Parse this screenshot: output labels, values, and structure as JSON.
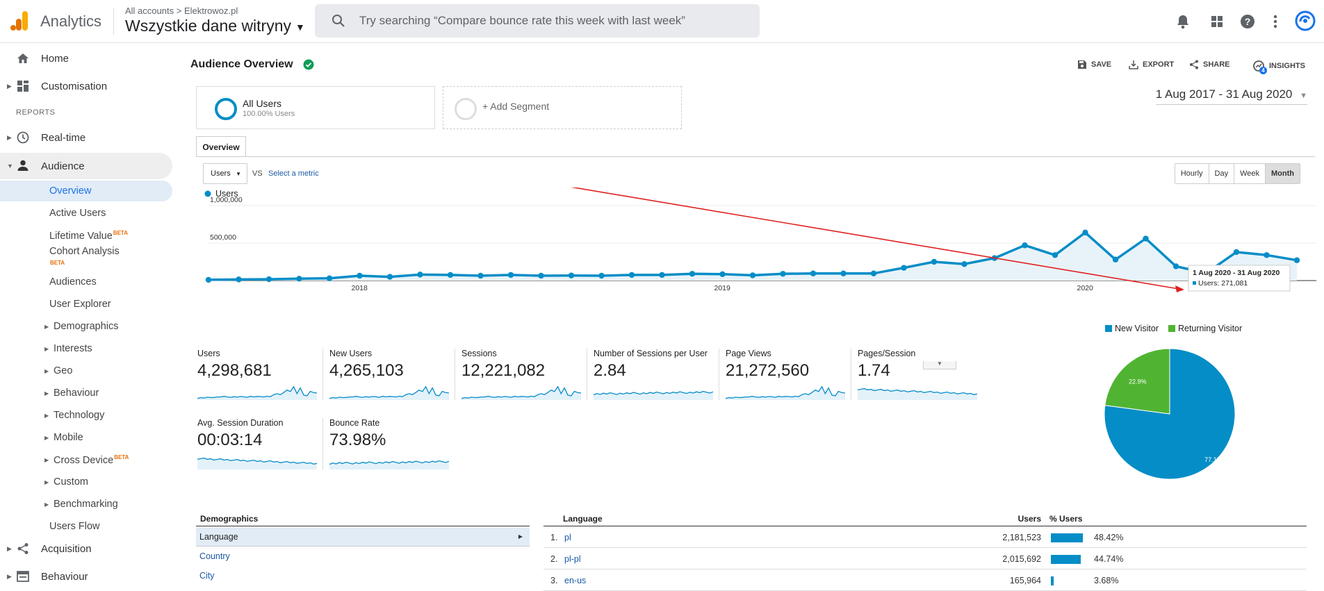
{
  "header": {
    "app_name": "Analytics",
    "breadcrumb": "All accounts",
    "account": "Elektrowoz.pl",
    "property": "Wszystkie dane witryny",
    "search_placeholder": "Try searching “Compare bounce rate this week with last week”",
    "icons": [
      "bell-icon",
      "apps-icon",
      "help-icon",
      "more-icon",
      "account-icon"
    ]
  },
  "sidebar": {
    "home": "Home",
    "customisation": "Customisation",
    "reports_label": "REPORTS",
    "realtime": "Real-time",
    "audience": "Audience",
    "audience_items": [
      {
        "label": "Overview"
      },
      {
        "label": "Active Users"
      },
      {
        "label": "Lifetime Value",
        "badge": "BETA"
      },
      {
        "label": "Cohort Analysis",
        "badge": "BETA"
      },
      {
        "label": "Audiences"
      },
      {
        "label": "User Explorer"
      },
      {
        "label": "Demographics"
      },
      {
        "label": "Interests"
      },
      {
        "label": "Geo"
      },
      {
        "label": "Behaviour"
      },
      {
        "label": "Technology"
      },
      {
        "label": "Mobile"
      },
      {
        "label": "Cross Device",
        "badge": "BETA"
      },
      {
        "label": "Custom"
      },
      {
        "label": "Benchmarking"
      },
      {
        "label": "Users Flow"
      }
    ],
    "acquisition": "Acquisition",
    "behaviour": "Behaviour"
  },
  "main": {
    "title": "Audience Overview",
    "actions": {
      "save": "SAVE",
      "export": "EXPORT",
      "share": "SHARE",
      "insights": "INSIGHTS",
      "insights_count": "4"
    },
    "segments": {
      "all_users": "All Users",
      "all_users_pct": "100.00% Users",
      "add_segment": "+ Add Segment"
    },
    "date_range": "1 Aug 2017 - 31 Aug 2020",
    "tab": "Overview",
    "metric_select": "Users",
    "vs": "VS",
    "select_metric": "Select a metric",
    "periods": [
      "Hourly",
      "Day",
      "Week",
      "Month"
    ],
    "active_period": "Month",
    "tooltip": {
      "title": "1 Aug 2020 - 31 Aug 2020",
      "line": "Users: 271,081"
    }
  },
  "chart_data": {
    "type": "line",
    "legend": [
      "Users"
    ],
    "ylabels": [
      "1,000,000",
      "500,000"
    ],
    "ylim": [
      0,
      1000000
    ],
    "xlabels": [
      "2018",
      "2019",
      "2020"
    ],
    "series": [
      {
        "name": "Users",
        "color": "#058dc7",
        "values": [
          10000,
          15000,
          18000,
          25000,
          30000,
          65000,
          50000,
          80000,
          75000,
          65000,
          75000,
          65000,
          68000,
          65000,
          75000,
          75000,
          90000,
          85000,
          70000,
          90000,
          95000,
          95000,
          95000,
          170000,
          250000,
          220000,
          300000,
          470000,
          340000,
          640000,
          280000,
          560000,
          190000,
          100000,
          380000,
          340000,
          271081
        ]
      }
    ]
  },
  "scorecards": [
    {
      "label": "Users",
      "value": "4,298,681"
    },
    {
      "label": "New Users",
      "value": "4,265,103"
    },
    {
      "label": "Sessions",
      "value": "12,221,082"
    },
    {
      "label": "Number of Sessions per User",
      "value": "2.84"
    },
    {
      "label": "Page Views",
      "value": "21,272,560"
    },
    {
      "label": "Pages/Session",
      "value": "1.74"
    },
    {
      "label": "Avg. Session Duration",
      "value": "00:03:14"
    },
    {
      "label": "Bounce Rate",
      "value": "73.98%"
    }
  ],
  "pie": {
    "legend": [
      {
        "label": "New Visitor",
        "color": "#058dc7"
      },
      {
        "label": "Returning Visitor",
        "color": "#50b432"
      }
    ],
    "values": [
      77.1,
      22.9
    ],
    "labels": [
      "77.1%",
      "22.9%"
    ]
  },
  "demographics": {
    "title": "Demographics",
    "items": [
      "Language",
      "Country",
      "City"
    ]
  },
  "language_table": {
    "title": "Language",
    "users_header": "Users",
    "pct_header": "% Users",
    "rows": [
      {
        "num": "1.",
        "name": "pl",
        "users": "2,181,523",
        "pct": "48.42%",
        "share": 48.42
      },
      {
        "num": "2.",
        "name": "pl-pl",
        "users": "2,015,692",
        "pct": "44.74%",
        "share": 44.74
      },
      {
        "num": "3.",
        "name": "en-us",
        "users": "165,964",
        "pct": "3.68%",
        "share": 3.68
      }
    ]
  }
}
